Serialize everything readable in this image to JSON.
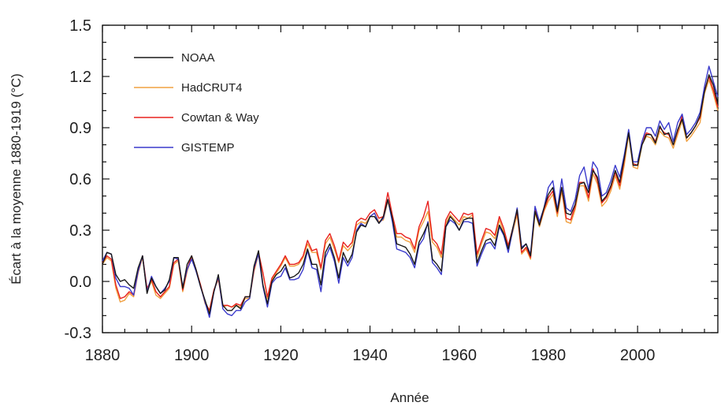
{
  "chart_data": {
    "type": "line",
    "xlabel": "Année",
    "ylabel": "Écart à la moyenne 1880-1919 (°C)",
    "xlim": [
      1880,
      2018
    ],
    "ylim": [
      -0.3,
      1.5
    ],
    "x_ticks": [
      1880,
      1900,
      1920,
      1940,
      1960,
      1980,
      2000
    ],
    "x_tick_labels": [
      "1880",
      "1900",
      "1920",
      "1940",
      "1960",
      "1980",
      "2000"
    ],
    "y_ticks": [
      -0.3,
      0.0,
      0.3,
      0.6,
      0.9,
      1.2,
      1.5
    ],
    "y_tick_labels": [
      "-0.3",
      "0.0",
      "0.3",
      "0.6",
      "0.9",
      "1.2",
      "1.5"
    ],
    "grid": false,
    "legend_position": "top-left",
    "x": [
      1880,
      1881,
      1882,
      1883,
      1884,
      1885,
      1886,
      1887,
      1888,
      1889,
      1890,
      1891,
      1892,
      1893,
      1894,
      1895,
      1896,
      1897,
      1898,
      1899,
      1900,
      1901,
      1902,
      1903,
      1904,
      1905,
      1906,
      1907,
      1908,
      1909,
      1910,
      1911,
      1912,
      1913,
      1914,
      1915,
      1916,
      1917,
      1918,
      1919,
      1920,
      1921,
      1922,
      1923,
      1924,
      1925,
      1926,
      1927,
      1928,
      1929,
      1930,
      1931,
      1932,
      1933,
      1934,
      1935,
      1936,
      1937,
      1938,
      1939,
      1940,
      1941,
      1942,
      1943,
      1944,
      1945,
      1946,
      1947,
      1948,
      1949,
      1950,
      1951,
      1952,
      1953,
      1954,
      1955,
      1956,
      1957,
      1958,
      1959,
      1960,
      1961,
      1962,
      1963,
      1964,
      1965,
      1966,
      1967,
      1968,
      1969,
      1970,
      1971,
      1972,
      1973,
      1974,
      1975,
      1976,
      1977,
      1978,
      1979,
      1980,
      1981,
      1982,
      1983,
      1984,
      1985,
      1986,
      1987,
      1988,
      1989,
      1990,
      1991,
      1992,
      1993,
      1994,
      1995,
      1996,
      1997,
      1998,
      1999,
      2000,
      2001,
      2002,
      2003,
      2004,
      2005,
      2006,
      2007,
      2008,
      2009,
      2010,
      2011,
      2012,
      2013,
      2014,
      2015,
      2016,
      2017,
      2018
    ],
    "series": [
      {
        "name": "NOAA",
        "color": "#1a1a1a",
        "values": [
          0.1,
          0.17,
          0.16,
          0.04,
          0.0,
          0.01,
          -0.02,
          -0.04,
          0.08,
          0.15,
          -0.07,
          0.02,
          -0.03,
          -0.07,
          -0.05,
          0.01,
          0.14,
          0.14,
          -0.04,
          0.1,
          0.15,
          0.07,
          -0.03,
          -0.11,
          -0.19,
          -0.06,
          0.04,
          -0.14,
          -0.17,
          -0.17,
          -0.14,
          -0.16,
          -0.09,
          -0.09,
          0.09,
          0.18,
          -0.02,
          -0.13,
          0.0,
          0.04,
          0.06,
          0.1,
          0.02,
          0.03,
          0.05,
          0.1,
          0.19,
          0.1,
          0.1,
          -0.02,
          0.17,
          0.22,
          0.14,
          0.02,
          0.17,
          0.11,
          0.16,
          0.29,
          0.33,
          0.32,
          0.38,
          0.38,
          0.34,
          0.38,
          0.48,
          0.37,
          0.22,
          0.21,
          0.2,
          0.16,
          0.1,
          0.23,
          0.28,
          0.34,
          0.13,
          0.1,
          0.06,
          0.32,
          0.38,
          0.35,
          0.3,
          0.36,
          0.37,
          0.37,
          0.11,
          0.18,
          0.24,
          0.25,
          0.21,
          0.33,
          0.28,
          0.19,
          0.31,
          0.42,
          0.19,
          0.22,
          0.15,
          0.41,
          0.33,
          0.43,
          0.51,
          0.55,
          0.41,
          0.55,
          0.4,
          0.39,
          0.45,
          0.57,
          0.58,
          0.52,
          0.65,
          0.61,
          0.47,
          0.5,
          0.56,
          0.65,
          0.58,
          0.72,
          0.87,
          0.68,
          0.68,
          0.8,
          0.86,
          0.86,
          0.81,
          0.91,
          0.86,
          0.87,
          0.8,
          0.89,
          0.95,
          0.84,
          0.87,
          0.91,
          0.97,
          1.11,
          1.21,
          1.15,
          1.04
        ]
      },
      {
        "name": "HadCRUT4",
        "color": "#f0a040",
        "values": [
          0.1,
          0.14,
          0.12,
          -0.04,
          -0.12,
          -0.11,
          -0.07,
          -0.09,
          0.05,
          0.14,
          -0.05,
          0.0,
          -0.08,
          -0.1,
          -0.07,
          -0.04,
          0.1,
          0.12,
          -0.06,
          0.06,
          0.14,
          0.06,
          -0.02,
          -0.13,
          -0.17,
          -0.05,
          0.01,
          -0.15,
          -0.14,
          -0.15,
          -0.14,
          -0.15,
          -0.1,
          -0.1,
          0.06,
          0.16,
          0.05,
          -0.1,
          0.01,
          0.05,
          0.09,
          0.14,
          0.09,
          0.09,
          0.1,
          0.14,
          0.22,
          0.17,
          0.17,
          0.07,
          0.22,
          0.26,
          0.19,
          0.11,
          0.21,
          0.18,
          0.21,
          0.33,
          0.35,
          0.34,
          0.38,
          0.4,
          0.35,
          0.36,
          0.47,
          0.37,
          0.26,
          0.26,
          0.24,
          0.23,
          0.17,
          0.3,
          0.35,
          0.41,
          0.23,
          0.2,
          0.14,
          0.34,
          0.39,
          0.36,
          0.33,
          0.38,
          0.37,
          0.39,
          0.14,
          0.22,
          0.29,
          0.28,
          0.25,
          0.36,
          0.29,
          0.19,
          0.29,
          0.39,
          0.16,
          0.19,
          0.13,
          0.4,
          0.32,
          0.41,
          0.47,
          0.51,
          0.38,
          0.53,
          0.35,
          0.34,
          0.42,
          0.56,
          0.56,
          0.47,
          0.63,
          0.57,
          0.44,
          0.47,
          0.53,
          0.62,
          0.54,
          0.68,
          0.86,
          0.67,
          0.66,
          0.8,
          0.85,
          0.84,
          0.8,
          0.88,
          0.85,
          0.84,
          0.78,
          0.86,
          0.94,
          0.82,
          0.85,
          0.89,
          0.93,
          1.1,
          1.18,
          1.1,
          1.0
        ]
      },
      {
        "name": "Cowtan & Way",
        "color": "#e8221f",
        "values": [
          0.11,
          0.15,
          0.13,
          -0.02,
          -0.1,
          -0.09,
          -0.06,
          -0.08,
          0.06,
          0.15,
          -0.04,
          0.01,
          -0.06,
          -0.09,
          -0.06,
          -0.03,
          0.11,
          0.13,
          -0.05,
          0.07,
          0.15,
          0.07,
          -0.02,
          -0.12,
          -0.17,
          -0.05,
          0.02,
          -0.14,
          -0.14,
          -0.15,
          -0.13,
          -0.14,
          -0.09,
          -0.09,
          0.07,
          0.17,
          0.05,
          -0.09,
          0.02,
          0.06,
          0.1,
          0.15,
          0.1,
          0.1,
          0.11,
          0.15,
          0.24,
          0.18,
          0.19,
          0.08,
          0.24,
          0.28,
          0.21,
          0.12,
          0.23,
          0.2,
          0.23,
          0.35,
          0.37,
          0.36,
          0.4,
          0.42,
          0.37,
          0.38,
          0.52,
          0.39,
          0.28,
          0.28,
          0.26,
          0.25,
          0.19,
          0.32,
          0.38,
          0.47,
          0.25,
          0.22,
          0.16,
          0.36,
          0.41,
          0.38,
          0.35,
          0.4,
          0.39,
          0.4,
          0.16,
          0.24,
          0.31,
          0.3,
          0.27,
          0.38,
          0.31,
          0.21,
          0.31,
          0.41,
          0.17,
          0.2,
          0.14,
          0.42,
          0.33,
          0.42,
          0.49,
          0.53,
          0.4,
          0.55,
          0.37,
          0.36,
          0.44,
          0.58,
          0.58,
          0.49,
          0.66,
          0.59,
          0.46,
          0.49,
          0.55,
          0.64,
          0.56,
          0.71,
          0.88,
          0.69,
          0.68,
          0.82,
          0.87,
          0.86,
          0.82,
          0.9,
          0.87,
          0.86,
          0.8,
          0.88,
          0.97,
          0.84,
          0.87,
          0.91,
          0.96,
          1.12,
          1.2,
          1.12,
          1.02
        ]
      },
      {
        "name": "GISTEMP",
        "color": "#3a3acc",
        "values": [
          0.12,
          0.17,
          0.16,
          0.02,
          -0.03,
          -0.03,
          -0.04,
          -0.08,
          0.06,
          0.15,
          -0.06,
          0.03,
          -0.03,
          -0.07,
          -0.04,
          0.0,
          0.14,
          0.13,
          -0.03,
          0.07,
          0.13,
          0.06,
          -0.03,
          -0.12,
          -0.21,
          -0.06,
          0.03,
          -0.16,
          -0.19,
          -0.2,
          -0.17,
          -0.17,
          -0.12,
          -0.1,
          0.08,
          0.16,
          -0.03,
          -0.15,
          -0.01,
          0.02,
          0.03,
          0.08,
          0.01,
          0.01,
          0.02,
          0.07,
          0.18,
          0.08,
          0.07,
          -0.06,
          0.14,
          0.2,
          0.12,
          -0.01,
          0.14,
          0.09,
          0.14,
          0.3,
          0.34,
          0.32,
          0.38,
          0.4,
          0.34,
          0.37,
          0.48,
          0.35,
          0.19,
          0.18,
          0.17,
          0.14,
          0.08,
          0.21,
          0.25,
          0.35,
          0.11,
          0.08,
          0.04,
          0.32,
          0.36,
          0.34,
          0.3,
          0.35,
          0.35,
          0.34,
          0.09,
          0.16,
          0.22,
          0.23,
          0.19,
          0.32,
          0.27,
          0.17,
          0.3,
          0.43,
          0.2,
          0.22,
          0.16,
          0.44,
          0.35,
          0.43,
          0.55,
          0.59,
          0.42,
          0.6,
          0.43,
          0.41,
          0.48,
          0.62,
          0.67,
          0.54,
          0.7,
          0.66,
          0.5,
          0.52,
          0.59,
          0.68,
          0.61,
          0.74,
          0.89,
          0.7,
          0.7,
          0.82,
          0.9,
          0.9,
          0.85,
          0.94,
          0.89,
          0.93,
          0.82,
          0.93,
          0.98,
          0.86,
          0.89,
          0.93,
          0.99,
          1.14,
          1.26,
          1.17,
          1.08
        ]
      }
    ]
  }
}
